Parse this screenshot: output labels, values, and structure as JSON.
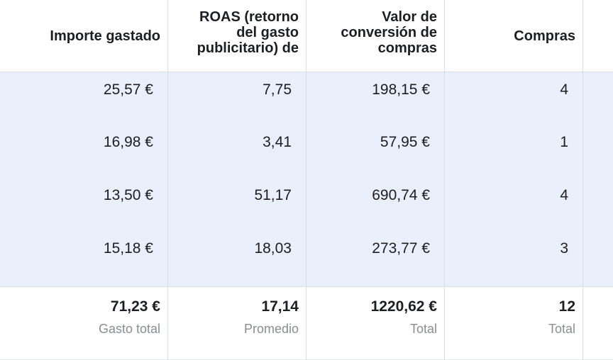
{
  "columns": [
    {
      "header": "Importe gastado"
    },
    {
      "header": "ROAS (retorno del gasto publicitario) de"
    },
    {
      "header": "Valor de conversión de compras"
    },
    {
      "header": "Compras"
    }
  ],
  "rows": [
    {
      "spend": "25,57 €",
      "roas": "7,75",
      "value": "198,15 €",
      "purchases": "4"
    },
    {
      "spend": "16,98 €",
      "roas": "3,41",
      "value": "57,95 €",
      "purchases": "1"
    },
    {
      "spend": "13,50 €",
      "roas": "51,17",
      "value": "690,74 €",
      "purchases": "4"
    },
    {
      "spend": "15,18 €",
      "roas": "18,03",
      "value": "273,77 €",
      "purchases": "3"
    }
  ],
  "totals": {
    "spend": {
      "value": "71,23 €",
      "label": "Gasto total"
    },
    "roas": {
      "value": "17,14",
      "label": "Promedio"
    },
    "value": {
      "value": "1220,62 €",
      "label": "Total"
    },
    "purchases": {
      "value": "12",
      "label": "Total"
    }
  }
}
